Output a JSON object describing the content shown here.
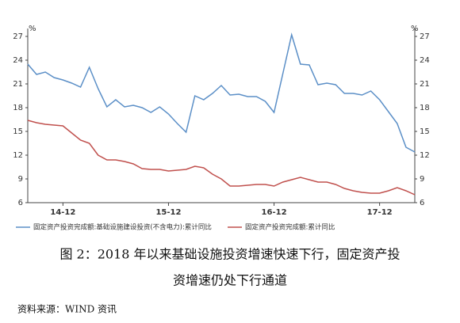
{
  "chart_data": {
    "type": "line",
    "categories": [
      null,
      null,
      null,
      null,
      "14-12",
      null,
      null,
      null,
      null,
      null,
      null,
      null,
      null,
      null,
      null,
      null,
      "15-12",
      null,
      null,
      null,
      null,
      null,
      null,
      null,
      null,
      null,
      null,
      null,
      "16-12",
      null,
      null,
      null,
      null,
      null,
      null,
      null,
      null,
      null,
      null,
      null,
      "17-12",
      null,
      null,
      null,
      null
    ],
    "series": [
      {
        "name": "固定资产投资完成额:基础设施建设投资(不含电力):累计同比",
        "color": "#5b8fc7",
        "values": [
          23.5,
          22.2,
          22.5,
          21.8,
          21.5,
          21.1,
          20.6,
          23.1,
          20.4,
          18.1,
          19.0,
          18.1,
          18.3,
          18.0,
          17.4,
          18.1,
          17.2,
          16.0,
          14.9,
          19.5,
          19.0,
          19.8,
          20.8,
          19.6,
          19.7,
          19.4,
          19.4,
          18.8,
          17.4,
          22.3,
          27.2,
          23.5,
          23.4,
          20.9,
          21.1,
          20.9,
          19.8,
          19.8,
          19.6,
          20.1,
          19.0,
          17.5,
          16.0,
          13.0,
          12.4
        ]
      },
      {
        "name": "固定资产投资完成额:累计同比",
        "color": "#c0504d",
        "values": [
          16.4,
          16.1,
          15.9,
          15.8,
          15.7,
          14.8,
          13.9,
          13.5,
          12.0,
          11.4,
          11.4,
          11.2,
          10.9,
          10.3,
          10.2,
          10.2,
          10.0,
          10.1,
          10.2,
          10.6,
          10.4,
          9.6,
          9.0,
          8.1,
          8.1,
          8.2,
          8.3,
          8.3,
          8.1,
          8.6,
          8.9,
          9.2,
          8.9,
          8.6,
          8.6,
          8.3,
          7.8,
          7.5,
          7.3,
          7.2,
          7.2,
          7.5,
          7.9,
          7.5,
          7.0
        ]
      }
    ],
    "ylim": [
      6,
      27
    ],
    "yticks": [
      6,
      9,
      12,
      15,
      18,
      21,
      24,
      27
    ],
    "y2lim": [
      6,
      27
    ],
    "y2ticks": [
      6,
      9,
      12,
      15,
      18,
      21,
      24,
      27
    ],
    "y_unit": "%",
    "y2_unit": "%",
    "caption_line1": "图 2：2018 年以来基础设施投资增速快速下行，固定资产投",
    "caption_line2": "资增速仍处下行通道",
    "source": "资料来源：WIND 资讯"
  }
}
